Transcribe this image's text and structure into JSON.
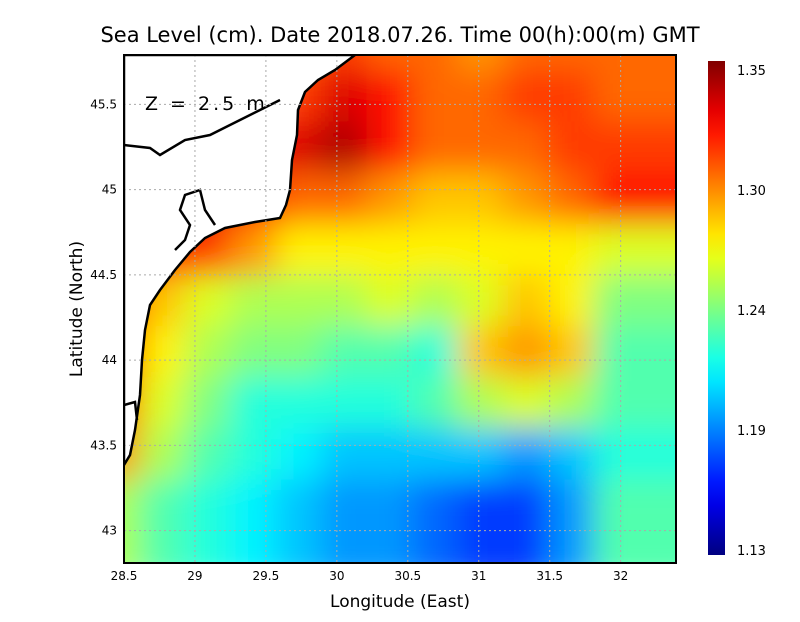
{
  "chart_data": {
    "type": "heatmap",
    "title": "Sea Level (cm). Date 2018.07.26. Time 00(h):00(m) GMT",
    "annotation": "Z = 2.5 m",
    "xlabel": "Longitude (East)",
    "ylabel": "Latitude (North)",
    "xlim": [
      28.5,
      32.39
    ],
    "ylim": [
      42.81,
      45.79
    ],
    "xticks": [
      "28.5",
      "29",
      "29.5",
      "30",
      "30.5",
      "31",
      "31.5",
      "32"
    ],
    "yticks": [
      "43",
      "43.5",
      "44",
      "44.5",
      "45",
      "45.5"
    ],
    "grid": true,
    "colorbar": {
      "min": 1.13,
      "max": 1.35,
      "ticks": [
        "1.35",
        "1.30",
        "1.24",
        "1.19",
        "1.13"
      ],
      "colormap": "jet",
      "placement": "right"
    },
    "lon": [
      28.6,
      28.92,
      29.24,
      29.56,
      29.88,
      30.2,
      30.52,
      30.84,
      31.16,
      31.48,
      31.8,
      32.12,
      32.39
    ],
    "lat": [
      45.7,
      45.4,
      45.1,
      44.8,
      44.5,
      44.2,
      43.9,
      43.6,
      43.3,
      43.0
    ],
    "values": [
      [
        null,
        null,
        null,
        null,
        1.3,
        1.31,
        1.3,
        1.3,
        1.29,
        1.3,
        1.3,
        1.3,
        1.3
      ],
      [
        null,
        null,
        null,
        null,
        1.31,
        1.33,
        1.32,
        1.3,
        1.3,
        1.31,
        1.31,
        1.3,
        1.3
      ],
      [
        null,
        null,
        null,
        1.32,
        1.33,
        1.34,
        1.32,
        1.3,
        1.3,
        1.3,
        1.31,
        1.31,
        1.31
      ],
      [
        1.34,
        1.34,
        1.33,
        1.32,
        1.3,
        1.3,
        1.29,
        1.28,
        1.28,
        1.29,
        1.3,
        1.32,
        1.32
      ],
      [
        1.33,
        1.32,
        1.31,
        1.29,
        1.27,
        1.27,
        1.27,
        1.27,
        1.27,
        1.27,
        1.27,
        1.26,
        1.26
      ],
      [
        1.32,
        1.28,
        1.26,
        1.25,
        1.25,
        1.25,
        1.26,
        1.25,
        1.26,
        1.28,
        1.27,
        1.24,
        1.24
      ],
      [
        1.31,
        1.27,
        1.25,
        1.24,
        1.24,
        1.23,
        1.23,
        1.22,
        1.28,
        1.29,
        1.28,
        1.23,
        1.23
      ],
      [
        1.3,
        1.26,
        1.24,
        1.22,
        1.22,
        1.22,
        1.22,
        1.23,
        1.25,
        1.26,
        1.25,
        1.23,
        1.23
      ],
      [
        1.29,
        1.25,
        1.23,
        1.22,
        1.21,
        1.2,
        1.2,
        1.2,
        1.2,
        1.19,
        1.2,
        1.22,
        1.22
      ],
      [
        1.25,
        1.23,
        1.22,
        1.21,
        1.2,
        1.19,
        1.19,
        1.18,
        1.17,
        1.17,
        1.19,
        1.23,
        1.23
      ]
    ]
  }
}
